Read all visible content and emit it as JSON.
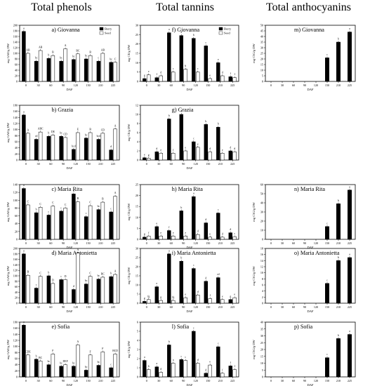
{
  "column_titles": [
    "Total phenols",
    "Total tannins",
    "Total anthocyanins"
  ],
  "legend_labels": [
    "Berry",
    "Seed"
  ],
  "x_label": "DAF",
  "x_ticks": [
    "0",
    "30",
    "60",
    "90",
    "120",
    "150",
    "210",
    "225"
  ],
  "chart_data": [
    {
      "type": "bar",
      "id": "phenols-giovanna",
      "title": "a)  Giovanna",
      "ylabel": "mg GAE/g DW",
      "ylim": [
        0,
        200
      ],
      "yticks": [
        0,
        20,
        40,
        60,
        80,
        100,
        120,
        140,
        160,
        180,
        200
      ],
      "legend": "top-right",
      "categories": [
        "0",
        "30",
        "60",
        "90",
        "120",
        "150",
        "210",
        "225"
      ],
      "series": [
        {
          "name": "Berry",
          "values": [
            178,
            72,
            82,
            72,
            78,
            80,
            72,
            68
          ]
        },
        {
          "name": "Seed",
          "values": [
            100,
            110,
            92,
            116,
            98,
            92,
            100,
            68
          ]
        }
      ],
      "letters": [
        [
          "a",
          "AB"
        ],
        [
          "bc",
          "AB"
        ],
        [
          "b",
          "B"
        ],
        [
          "bc",
          "A"
        ],
        [
          "bc",
          "BC"
        ],
        [
          "bc",
          "B"
        ],
        [
          "c",
          "AB"
        ],
        [
          "bc",
          "C"
        ]
      ]
    },
    {
      "type": "bar",
      "id": "phenols-grazia",
      "title": "b)  Grazia",
      "ylabel": "mg GAE/g DW",
      "ylim": [
        0,
        180
      ],
      "yticks": [
        0,
        20,
        40,
        60,
        80,
        100,
        120,
        140,
        160,
        180
      ],
      "categories": [
        "0",
        "30",
        "60",
        "90",
        "120",
        "150",
        "210",
        "225"
      ],
      "series": [
        {
          "name": "Berry",
          "values": [
            148,
            68,
            78,
            78,
            35,
            72,
            68,
            33
          ]
        },
        {
          "name": "Seed",
          "values": [
            88,
            92,
            82,
            74,
            90,
            90,
            88,
            102
          ]
        }
      ],
      "letters": [
        [
          "a",
          "A"
        ],
        [
          "cd",
          "ABC"
        ],
        [
          "b",
          "DE"
        ],
        [
          "bc",
          "CD"
        ],
        [
          "bcd",
          "E"
        ],
        [
          "bc",
          "B"
        ],
        [
          "bcd",
          "CD"
        ],
        [
          "d",
          "A"
        ]
      ]
    },
    {
      "type": "bar",
      "id": "phenols-maria-rita",
      "title": "c)  Maria Rita",
      "ylabel": "mg GAE/g DW",
      "ylim": [
        0,
        140
      ],
      "yticks": [
        0,
        20,
        40,
        60,
        80,
        100,
        120,
        140
      ],
      "categories": [
        "0",
        "30",
        "60",
        "90",
        "120",
        "150",
        "210",
        "225"
      ],
      "series": [
        {
          "name": "Berry",
          "values": [
            130,
            68,
            62,
            72,
            116,
            58,
            76,
            70
          ]
        },
        {
          "name": "Seed",
          "values": [
            88,
            82,
            85,
            80,
            96,
            86,
            95,
            110
          ]
        }
      ],
      "letters": [
        [
          "a",
          "C"
        ],
        [
          "b",
          "C"
        ],
        [
          "c",
          "C"
        ],
        [
          "c",
          "C"
        ],
        [
          "a",
          "B"
        ],
        [
          "c",
          "C"
        ],
        [
          "bc",
          "B"
        ],
        [
          "c",
          "A"
        ]
      ]
    },
    {
      "type": "bar",
      "id": "phenols-maria-antonietta",
      "title": "d)  Maria Antonietta",
      "ylabel": "mg GAE/g DW",
      "ylim": [
        0,
        200
      ],
      "yticks": [
        0,
        20,
        40,
        60,
        80,
        100,
        120,
        140,
        160,
        180,
        200
      ],
      "categories": [
        "0",
        "30",
        "60",
        "90",
        "120",
        "150",
        "210",
        "225"
      ],
      "series": [
        {
          "name": "Berry",
          "values": [
            180,
            55,
            100,
            86,
            50,
            70,
            88,
            97
          ]
        },
        {
          "name": "Seed",
          "values": [
            102,
            98,
            72,
            86,
            183,
            98,
            95,
            105
          ]
        }
      ],
      "letters": [
        [
          "a",
          "B"
        ],
        [
          "c",
          "C"
        ],
        [
          "b",
          "D"
        ],
        [
          "c",
          "D"
        ],
        [
          "d",
          "A"
        ],
        [
          "bc",
          "C"
        ],
        [
          "bc",
          "BC"
        ],
        [
          "b",
          "A"
        ]
      ]
    },
    {
      "type": "bar",
      "id": "phenols-sofia",
      "title": "e)  Sofia",
      "ylabel": "mg GAE/g DW",
      "ylim": [
        0,
        180
      ],
      "yticks": [
        0,
        20,
        40,
        60,
        80,
        100,
        120,
        140,
        160,
        180
      ],
      "categories": [
        "0",
        "30",
        "60",
        "90",
        "120",
        "150",
        "210",
        "225"
      ],
      "series": [
        {
          "name": "Berry",
          "values": [
            170,
            58,
            40,
            35,
            35,
            22,
            38,
            30
          ]
        },
        {
          "name": "Seed",
          "values": [
            72,
            52,
            75,
            40,
            105,
            72,
            82,
            75
          ]
        }
      ],
      "letters": [
        [
          "a",
          "CDE"
        ],
        [
          "b",
          "BC"
        ],
        [
          "bc",
          "F"
        ],
        [
          "bc",
          "DEF"
        ],
        [
          "bc",
          "A"
        ],
        [
          "bc",
          "F"
        ],
        [
          "bc",
          "F"
        ],
        [
          "c",
          "BCD"
        ]
      ]
    },
    {
      "type": "bar",
      "id": "tannins-giovanna",
      "title": "f)  Giovanna",
      "ylabel": "mg CE/g DW",
      "ylim": [
        0,
        30
      ],
      "yticks": [
        0,
        5,
        10,
        15,
        20,
        25,
        30
      ],
      "legend": "top-right",
      "categories": [
        "0",
        "30",
        "60",
        "90",
        "120",
        "150",
        "210",
        "225"
      ],
      "series": [
        {
          "name": "Berry",
          "values": [
            1.5,
            2.0,
            26.0,
            24.5,
            23.0,
            19.0,
            10.0,
            2.5
          ]
        },
        {
          "name": "Seed",
          "values": [
            3.5,
            3.0,
            5.0,
            6.5,
            5.0,
            1.5,
            3.0,
            2.0
          ]
        }
      ],
      "letters": [
        [
          "g",
          "e"
        ],
        [
          "f",
          "d"
        ],
        [
          "a",
          "c"
        ],
        [
          "a",
          "b"
        ],
        [
          "b",
          "c"
        ],
        [
          "c",
          "e"
        ],
        [
          "e",
          "d"
        ],
        [
          "f",
          "f"
        ]
      ]
    },
    {
      "type": "bar",
      "id": "tannins-grazia",
      "title": "g)  Grazia",
      "ylabel": "mg CE/g DW",
      "ylim": [
        0,
        12
      ],
      "yticks": [
        0,
        2,
        4,
        6,
        8,
        10,
        12
      ],
      "categories": [
        "0",
        "30",
        "60",
        "90",
        "120",
        "150",
        "210",
        "225"
      ],
      "series": [
        {
          "name": "Berry",
          "values": [
            0.5,
            1.8,
            9.0,
            10.0,
            4.0,
            7.8,
            7.2,
            2.0
          ]
        },
        {
          "name": "Seed",
          "values": [
            0.4,
            1.5,
            1.5,
            2.0,
            2.8,
            1.8,
            1.5,
            1.8
          ]
        }
      ],
      "letters": [
        [
          "e",
          "g"
        ],
        [
          "d",
          "e"
        ],
        [
          "b",
          "f"
        ],
        [
          "a",
          "e"
        ],
        [
          "c",
          "e"
        ],
        [
          "b",
          "d"
        ],
        [
          "b",
          "e"
        ],
        [
          "d",
          "d"
        ]
      ]
    },
    {
      "type": "bar",
      "id": "tannins-maria-rita",
      "title": "h)  Maria Rita",
      "ylabel": "mg CE/g DW",
      "ylim": [
        0,
        25
      ],
      "yticks": [
        0,
        5,
        10,
        15,
        20,
        25
      ],
      "categories": [
        "0",
        "30",
        "60",
        "90",
        "120",
        "150",
        "210",
        "225"
      ],
      "series": [
        {
          "name": "Berry",
          "values": [
            1.0,
            5.8,
            4.0,
            13.0,
            19.5,
            7.5,
            12.0,
            3.0
          ]
        },
        {
          "name": "Seed",
          "values": [
            1.5,
            1.5,
            1.5,
            1.5,
            2.2,
            1.0,
            1.0,
            1.2
          ]
        }
      ],
      "letters": [
        [
          "g",
          "f"
        ],
        [
          "e",
          "e"
        ],
        [
          "f",
          "e"
        ],
        [
          "b",
          "e"
        ],
        [
          "a",
          "d"
        ],
        [
          "d",
          "e"
        ],
        [
          "c",
          "d"
        ],
        [
          "d",
          "c"
        ]
      ]
    },
    {
      "type": "bar",
      "id": "tannins-maria-antonietta",
      "title": "i)  Maria Antonietta",
      "ylabel": "mg CE/g DW",
      "ylim": [
        0,
        30
      ],
      "yticks": [
        0,
        5,
        10,
        15,
        20,
        25,
        30
      ],
      "categories": [
        "0",
        "30",
        "60",
        "90",
        "120",
        "150",
        "210",
        "225"
      ],
      "series": [
        {
          "name": "Berry",
          "values": [
            1.0,
            9.0,
            27.0,
            23.0,
            19.0,
            12.0,
            14.0,
            2.0
          ]
        },
        {
          "name": "Seed",
          "values": [
            2.0,
            1.5,
            1.5,
            3.0,
            4.5,
            2.5,
            2.0,
            3.0
          ]
        }
      ],
      "letters": [
        [
          "g",
          "fg"
        ],
        [
          "e",
          "g"
        ],
        [
          "a",
          "fg"
        ],
        [
          "b",
          "e"
        ],
        [
          "c",
          "d"
        ],
        [
          "d",
          "f"
        ],
        [
          "cd",
          "e"
        ],
        [
          "g",
          "e"
        ]
      ]
    },
    {
      "type": "bar",
      "id": "tannins-sofia",
      "title": "l)  Sofia",
      "ylabel": "mg CE/g DW",
      "ylim": [
        0,
        6
      ],
      "yticks": [
        0,
        1,
        2,
        3,
        4,
        5,
        6
      ],
      "categories": [
        "0",
        "30",
        "60",
        "90",
        "120",
        "150",
        "210",
        "225"
      ],
      "series": [
        {
          "name": "Berry",
          "values": [
            1.8,
            1.1,
            3.5,
            1.9,
            5.0,
            0.4,
            3.3,
            1.2
          ]
        },
        {
          "name": "Seed",
          "values": [
            0.8,
            0.5,
            1.5,
            1.8,
            1.5,
            1.3,
            0.4,
            0.8
          ]
        }
      ],
      "letters": [
        [
          "a",
          "b"
        ],
        [
          "a",
          "d"
        ],
        [
          "b",
          "a"
        ],
        [
          "c",
          "c"
        ],
        [
          "c",
          "d"
        ],
        [
          "d",
          "e"
        ],
        [
          "c",
          "f"
        ],
        [
          "f",
          "f"
        ]
      ]
    },
    {
      "type": "bar",
      "id": "anthocyanins-giovanna",
      "title": "m)  Giovanna",
      "ylabel": "mg C3G/g DW",
      "ylim": [
        0,
        50
      ],
      "yticks": [
        0,
        5,
        10,
        15,
        20,
        25,
        30,
        35,
        40,
        45,
        50
      ],
      "categories": [
        "0",
        "30",
        "60",
        "90",
        "120",
        "150",
        "210",
        "225"
      ],
      "series": [
        {
          "name": "Berry",
          "values": [
            null,
            null,
            null,
            null,
            null,
            21,
            35,
            44
          ]
        }
      ],
      "letters": [
        [],
        [],
        [],
        [],
        [],
        [
          "c"
        ],
        [
          "b"
        ],
        [
          "a"
        ]
      ]
    },
    {
      "type": "bar",
      "id": "anthocyanins-maria-rita",
      "title": "n)  Maria Rita",
      "ylabel": "mg C3G/g DW",
      "ylim": [
        0,
        60
      ],
      "yticks": [
        0,
        10,
        20,
        30,
        40,
        50,
        60
      ],
      "categories": [
        "0",
        "30",
        "60",
        "90",
        "120",
        "150",
        "210",
        "225"
      ],
      "series": [
        {
          "name": "Berry",
          "values": [
            null,
            null,
            null,
            null,
            null,
            14,
            39,
            54
          ]
        }
      ],
      "letters": [
        [],
        [],
        [],
        [],
        [],
        [
          "c"
        ],
        [
          "b"
        ],
        [
          "a"
        ]
      ]
    },
    {
      "type": "bar",
      "id": "anthocyanins-maria-antonietta",
      "title": "o)  Maria Antonietta",
      "ylabel": "mg C3G/g DW",
      "ylim": [
        0,
        18
      ],
      "yticks": [
        0,
        2,
        4,
        6,
        8,
        10,
        12,
        14,
        16,
        18
      ],
      "categories": [
        "0",
        "30",
        "60",
        "90",
        "120",
        "150",
        "210",
        "225"
      ],
      "series": [
        {
          "name": "Berry",
          "values": [
            null,
            null,
            null,
            null,
            null,
            6.5,
            14,
            15
          ]
        }
      ],
      "letters": [
        [],
        [],
        [],
        [],
        [],
        [
          "c"
        ],
        [
          "b"
        ],
        [
          "a"
        ]
      ]
    },
    {
      "type": "bar",
      "id": "anthocyanins-sofia",
      "title": "p)  Sofia",
      "ylabel": "mg C3G/g DW",
      "ylim": [
        0,
        40
      ],
      "yticks": [
        0,
        5,
        10,
        15,
        20,
        25,
        30,
        35,
        40
      ],
      "categories": [
        "0",
        "30",
        "60",
        "90",
        "120",
        "150",
        "210",
        "225"
      ],
      "series": [
        {
          "name": "Berry",
          "values": [
            null,
            null,
            null,
            null,
            null,
            14,
            28,
            31
          ]
        }
      ],
      "letters": [
        [],
        [],
        [],
        [],
        [],
        [
          "c"
        ],
        [
          "b"
        ],
        [
          "a"
        ]
      ]
    }
  ]
}
